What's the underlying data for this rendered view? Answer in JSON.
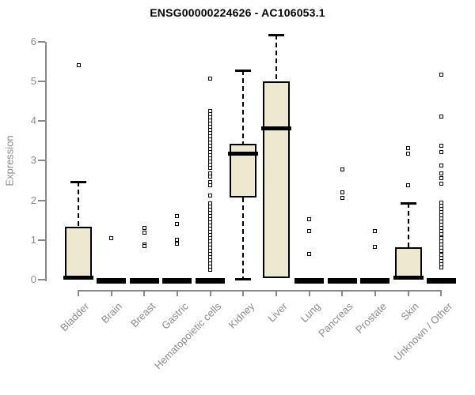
{
  "title": "ENSG00000224626 - AC106053.1",
  "y_axis": {
    "label": "Expression",
    "ticks": [
      0,
      1,
      2,
      3,
      4,
      5,
      6
    ]
  },
  "colors": {
    "box_fill": "#ede8d0",
    "box_border": "#000000",
    "axis": "#888888",
    "axis_text": "#8a8a8a",
    "title_text": "#000000",
    "background": "#ffffff"
  },
  "chart_data": {
    "type": "boxplot",
    "title": "ENSG00000224626 - AC106053.1",
    "xlabel": "",
    "ylabel": "Expression",
    "ylim": [
      0,
      6.2
    ],
    "grid": false,
    "legend": "none",
    "categories": [
      "Bladder",
      "Brain",
      "Breast",
      "Gastric",
      "Hematopoietic cells",
      "Kidney",
      "Liver",
      "Lung",
      "Pancreas",
      "Prostate",
      "Skin",
      "Unknown / Other"
    ],
    "series": [
      {
        "category": "Bladder",
        "whisker_low": 0,
        "q1": 0,
        "median": 0.04,
        "q3": 1.34,
        "whisker_high": 2.47,
        "outliers": [
          5.42
        ]
      },
      {
        "category": "Brain",
        "whisker_low": 0,
        "q1": 0,
        "median": 0,
        "q3": 0,
        "whisker_high": 0,
        "outliers": [
          1.05
        ]
      },
      {
        "category": "Breast",
        "whisker_low": 0,
        "q1": 0,
        "median": 0,
        "q3": 0,
        "whisker_high": 0,
        "outliers": [
          1.3,
          1.18,
          0.88,
          0.84
        ]
      },
      {
        "category": "Gastric",
        "whisker_low": 0,
        "q1": 0,
        "median": 0,
        "q3": 0,
        "whisker_high": 0,
        "outliers": [
          1.61,
          1.4,
          1.01,
          0.91
        ]
      },
      {
        "category": "Hematopoietic cells",
        "whisker_low": 0,
        "q1": 0,
        "median": 0,
        "q3": 0,
        "whisker_high": 0,
        "outliers": [
          5.07,
          4.26,
          4.18,
          4.1,
          4.02,
          3.94,
          3.86,
          3.78,
          3.7,
          3.62,
          3.54,
          3.46,
          3.38,
          3.3,
          3.22,
          3.14,
          3.06,
          2.98,
          2.9,
          2.82,
          2.68,
          2.6,
          2.46,
          2.38,
          2.12,
          1.93,
          1.85,
          1.77,
          1.69,
          1.61,
          1.53,
          1.45,
          1.37,
          1.29,
          1.21,
          1.13,
          1.05,
          0.97,
          0.89,
          0.81,
          0.73,
          0.65,
          0.57,
          0.49,
          0.41,
          0.33,
          0.25
        ]
      },
      {
        "category": "Kidney",
        "whisker_low": 0.02,
        "q1": 2.07,
        "median": 3.18,
        "q3": 3.43,
        "whisker_high": 5.28,
        "outliers": []
      },
      {
        "category": "Liver",
        "whisker_low": 0.04,
        "q1": 0.04,
        "median": 3.82,
        "q3": 5.0,
        "whisker_high": 6.17,
        "outliers": []
      },
      {
        "category": "Lung",
        "whisker_low": 0,
        "q1": 0,
        "median": 0,
        "q3": 0,
        "whisker_high": 0,
        "outliers": [
          1.53,
          1.22,
          0.64
        ]
      },
      {
        "category": "Pancreas",
        "whisker_low": 0,
        "q1": 0,
        "median": 0,
        "q3": 0,
        "whisker_high": 0,
        "outliers": [
          2.79,
          2.21,
          2.07
        ]
      },
      {
        "category": "Prostate",
        "whisker_low": 0,
        "q1": 0,
        "median": 0,
        "q3": 0,
        "whisker_high": 0,
        "outliers": [
          1.22,
          0.82
        ]
      },
      {
        "category": "Skin",
        "whisker_low": 0,
        "q1": 0,
        "median": 0.03,
        "q3": 0.82,
        "whisker_high": 1.93,
        "outliers": [
          3.31,
          3.17,
          2.39
        ]
      },
      {
        "category": "Unknown / Other",
        "whisker_low": 0,
        "q1": 0,
        "median": 0,
        "q3": 0,
        "whisker_high": 0,
        "outliers": [
          5.18,
          4.12,
          3.38,
          3.22,
          2.88,
          2.68,
          2.56,
          2.42,
          1.95,
          1.87,
          1.79,
          1.71,
          1.63,
          1.55,
          1.47,
          1.39,
          1.31,
          1.23,
          1.15,
          1.04,
          0.96,
          0.88,
          0.8,
          0.72,
          0.62,
          0.54,
          0.46,
          0.38,
          0.3
        ]
      }
    ]
  }
}
